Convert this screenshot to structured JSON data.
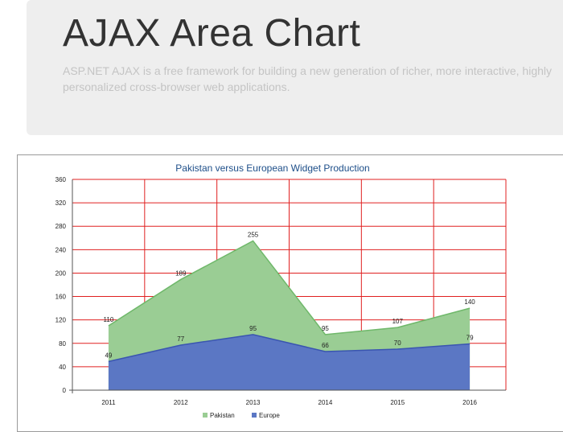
{
  "header": {
    "title": "AJAX Area Chart",
    "lead": "ASP.NET AJAX is a free framework for building a new generation of richer, more interactive, highly personalized cross-browser web applications."
  },
  "chart_data": {
    "type": "area",
    "title": "Pakistan versus European Widget Production",
    "xlabel": "",
    "ylabel": "",
    "categories": [
      "2011",
      "2012",
      "2013",
      "2014",
      "2015",
      "2016"
    ],
    "ylim": [
      0,
      360
    ],
    "yticks": [
      0,
      40,
      80,
      120,
      160,
      200,
      240,
      280,
      320,
      360
    ],
    "grid": true,
    "legend_position": "bottom",
    "series": [
      {
        "name": "Pakistan",
        "values": [
          110,
          189,
          255,
          95,
          107,
          140
        ],
        "color": "#9acd94",
        "stroke": "#6fb86a"
      },
      {
        "name": "Europe",
        "values": [
          49,
          77,
          95,
          66,
          70,
          79
        ],
        "color": "#5b77c4",
        "stroke": "#3a55b0"
      }
    ],
    "grid_color": "#e02020"
  }
}
